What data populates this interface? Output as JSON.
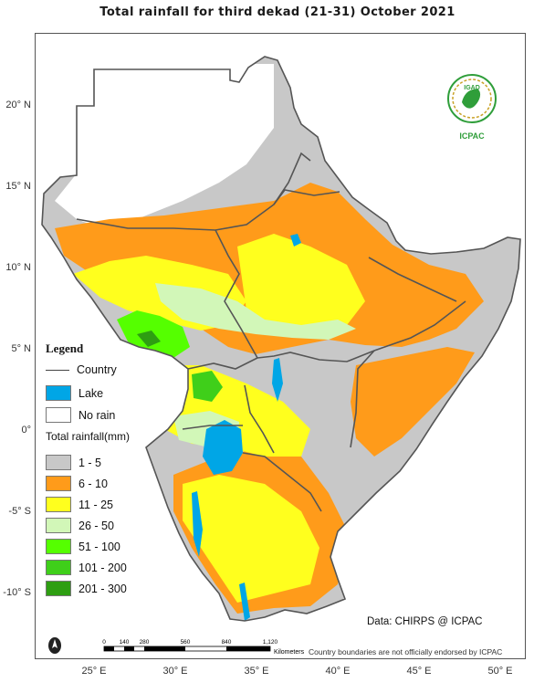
{
  "title": "Total rainfall  for  third  dekad (21-31)  October  2021",
  "lat_ticks": [
    {
      "label": "20° N",
      "lat": 20
    },
    {
      "label": "15° N",
      "lat": 15
    },
    {
      "label": "10° N",
      "lat": 10
    },
    {
      "label": "5° N",
      "lat": 5
    },
    {
      "label": "0°",
      "lat": 0
    },
    {
      "label": "-5° S",
      "lat": -5
    },
    {
      "label": "-10° S",
      "lat": -10
    }
  ],
  "lon_ticks": [
    {
      "label": "25° E",
      "lon": 25
    },
    {
      "label": "30° E",
      "lon": 30
    },
    {
      "label": "35° E",
      "lon": 35
    },
    {
      "label": "40° E",
      "lon": 40
    },
    {
      "label": "45° E",
      "lon": 45
    },
    {
      "label": "50° E",
      "lon": 50
    }
  ],
  "legend": {
    "title": "Legend",
    "country": "Country",
    "lake": "Lake",
    "no_rain": "No rain",
    "rainfall_title": "Total rainfall(mm)",
    "classes": [
      {
        "label": "1 - 5",
        "color": "#c8c8c8"
      },
      {
        "label": "6 - 10",
        "color": "#ff9b1a"
      },
      {
        "label": "11 - 25",
        "color": "#ffff1e"
      },
      {
        "label": "26 - 50",
        "color": "#d2f7b8"
      },
      {
        "label": "51 - 100",
        "color": "#55ff00"
      },
      {
        "label": "101 - 200",
        "color": "#3fcf1a"
      },
      {
        "label": "201 - 300",
        "color": "#2e9e12"
      }
    ],
    "lake_color": "#00a6e6",
    "no_rain_color": "#ffffff"
  },
  "logo": {
    "top_text": "IGAD",
    "bottom_text": "ICPAC"
  },
  "scale_bar": {
    "ticks": [
      "0",
      "140",
      "280",
      "560",
      "840",
      "1,120"
    ],
    "unit": "Kilometers"
  },
  "credit": "Data: CHIRPS @ ICPAC",
  "disclaimer": "Country boundaries are not officially endorsed by ICPAC"
}
